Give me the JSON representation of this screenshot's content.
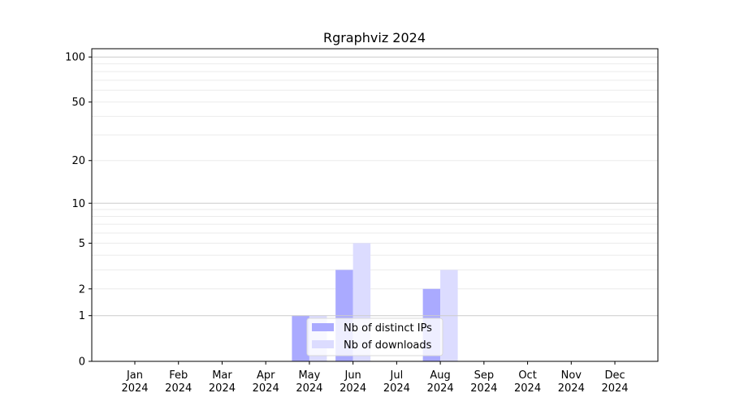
{
  "chart_data": {
    "type": "bar",
    "title": "Rgraphviz 2024",
    "xlabel": "",
    "ylabel": "",
    "yscale": "log10(1+y)",
    "ylim": [
      0,
      114
    ],
    "grid": true,
    "legend_placement": "lower-center",
    "categories": [
      "Jan\n2024",
      "Feb\n2024",
      "Mar\n2024",
      "Apr\n2024",
      "May\n2024",
      "Jun\n2024",
      "Jul\n2024",
      "Aug\n2024",
      "Sep\n2024",
      "Oct\n2024",
      "Nov\n2024",
      "Dec\n2024"
    ],
    "yticks": [
      0,
      1,
      2,
      5,
      10,
      20,
      50,
      100
    ],
    "series": [
      {
        "name": "Nb of distinct IPs",
        "color": "#aaaaff",
        "values": [
          0,
          0,
          0,
          0,
          1,
          3,
          0,
          2,
          0,
          0,
          0,
          0
        ]
      },
      {
        "name": "Nb of downloads",
        "color": "#dcdcff",
        "values": [
          0,
          0,
          0,
          0,
          1,
          5,
          0,
          3,
          0,
          0,
          0,
          0
        ]
      }
    ]
  }
}
